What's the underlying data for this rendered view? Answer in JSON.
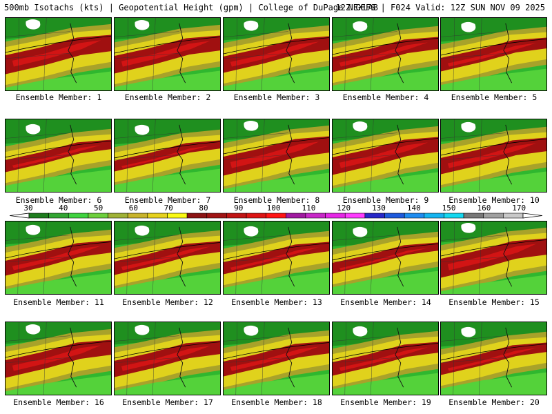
{
  "header": {
    "left": "500mb Isotachs (kts) | Geopotential Height (gpm) | College of DuPage NEXLAB",
    "right": "12Z GEFS | F024 Valid: 12Z SUN NOV 09 2025"
  },
  "panels": [
    {
      "label": "Ensemble Member: 1"
    },
    {
      "label": "Ensemble Member: 2"
    },
    {
      "label": "Ensemble Member: 3"
    },
    {
      "label": "Ensemble Member: 4"
    },
    {
      "label": "Ensemble Member: 5"
    },
    {
      "label": "Ensemble Member: 6"
    },
    {
      "label": "Ensemble Member: 7"
    },
    {
      "label": "Ensemble Member: 8"
    },
    {
      "label": "Ensemble Member: 9"
    },
    {
      "label": "Ensemble Member: 10"
    },
    {
      "label": "Ensemble Member: 11"
    },
    {
      "label": "Ensemble Member: 12"
    },
    {
      "label": "Ensemble Member: 13"
    },
    {
      "label": "Ensemble Member: 14"
    },
    {
      "label": "Ensemble Member: 15"
    },
    {
      "label": "Ensemble Member: 16"
    },
    {
      "label": "Ensemble Member: 17"
    },
    {
      "label": "Ensemble Member: 18"
    },
    {
      "label": "Ensemble Member: 19"
    },
    {
      "label": "Ensemble Member: 20"
    }
  ],
  "colorbar": {
    "ticks": [
      "30",
      "40",
      "50",
      "60",
      "70",
      "80",
      "90",
      "100",
      "110",
      "120",
      "130",
      "140",
      "150",
      "160",
      "170"
    ],
    "colors": [
      "#1e7d1e",
      "#32a532",
      "#3fd33f",
      "#6dcf3c",
      "#9fb236",
      "#c8b42c",
      "#e6d21e",
      "#fafa14",
      "#8c1414",
      "#a01414",
      "#c01414",
      "#dc1414",
      "#ff1414",
      "#a01aa0",
      "#c828c8",
      "#e628e6",
      "#ff3cff",
      "#2828c8",
      "#1e5adc",
      "#1e8cf0",
      "#14b4f0",
      "#14d8f0",
      "#787878",
      "#a0a0a0",
      "#c8c8c8"
    ]
  },
  "colors": {
    "green_dark": "#1f8f1f",
    "green": "#2fb72f",
    "green_light": "#54d23a",
    "olive": "#a8a22a",
    "yellow": "#e0d21c",
    "yellow_bright": "#f5ee14",
    "red_dark": "#a01010",
    "red": "#d21414"
  }
}
